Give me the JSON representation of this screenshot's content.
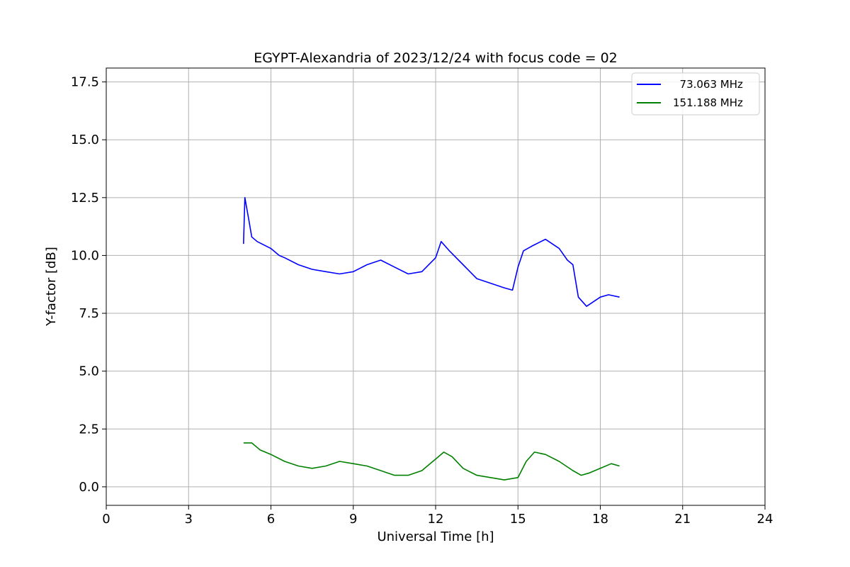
{
  "chart_data": {
    "type": "line",
    "title": "EGYPT-Alexandria of 2023/12/24 with focus code = 02",
    "xlabel": "Universal Time [h]",
    "ylabel": "Y-factor [dB]",
    "xlim": [
      0,
      24
    ],
    "ylim": [
      -0.8,
      18.1
    ],
    "xticks": [
      0,
      3,
      6,
      9,
      12,
      15,
      18,
      21,
      24
    ],
    "xtick_labels": [
      "0",
      "3",
      "6",
      "9",
      "12",
      "15",
      "18",
      "21",
      "24"
    ],
    "yticks": [
      0.0,
      2.5,
      5.0,
      7.5,
      10.0,
      12.5,
      15.0,
      17.5
    ],
    "ytick_labels": [
      "0.0",
      "2.5",
      "5.0",
      "7.5",
      "10.0",
      "12.5",
      "15.0",
      "17.5"
    ],
    "grid": true,
    "legend_position": "upper right",
    "series": [
      {
        "name": "  73.063 MHz",
        "color": "#0000ff",
        "x": [
          5.0,
          5.05,
          5.2,
          5.3,
          5.5,
          6.0,
          6.3,
          6.5,
          7.0,
          7.5,
          8.0,
          8.5,
          9.0,
          9.5,
          10.0,
          10.5,
          11.0,
          11.5,
          12.0,
          12.2,
          12.5,
          13.0,
          13.5,
          14.0,
          14.5,
          14.8,
          15.0,
          15.2,
          15.5,
          16.0,
          16.5,
          16.8,
          17.0,
          17.2,
          17.5,
          18.0,
          18.3,
          18.7
        ],
        "y": [
          10.5,
          12.5,
          11.5,
          10.8,
          10.6,
          10.3,
          10.0,
          9.9,
          9.6,
          9.4,
          9.3,
          9.2,
          9.3,
          9.6,
          9.8,
          9.5,
          9.2,
          9.3,
          9.9,
          10.6,
          10.2,
          9.6,
          9.0,
          8.8,
          8.6,
          8.5,
          9.5,
          10.2,
          10.4,
          10.7,
          10.3,
          9.8,
          9.6,
          8.2,
          7.8,
          8.2,
          8.3,
          8.2
        ]
      },
      {
        "name": "151.188 MHz",
        "color": "#008000",
        "x": [
          5.0,
          5.3,
          5.6,
          6.0,
          6.5,
          7.0,
          7.5,
          8.0,
          8.5,
          9.0,
          9.5,
          10.0,
          10.5,
          11.0,
          11.5,
          12.0,
          12.3,
          12.6,
          13.0,
          13.5,
          14.0,
          14.5,
          15.0,
          15.3,
          15.6,
          16.0,
          16.5,
          17.0,
          17.3,
          17.6,
          18.0,
          18.4,
          18.7
        ],
        "y": [
          1.9,
          1.9,
          1.6,
          1.4,
          1.1,
          0.9,
          0.8,
          0.9,
          1.1,
          1.0,
          0.9,
          0.7,
          0.5,
          0.5,
          0.7,
          1.2,
          1.5,
          1.3,
          0.8,
          0.5,
          0.4,
          0.3,
          0.4,
          1.1,
          1.5,
          1.4,
          1.1,
          0.7,
          0.5,
          0.6,
          0.8,
          1.0,
          0.9
        ]
      }
    ]
  }
}
